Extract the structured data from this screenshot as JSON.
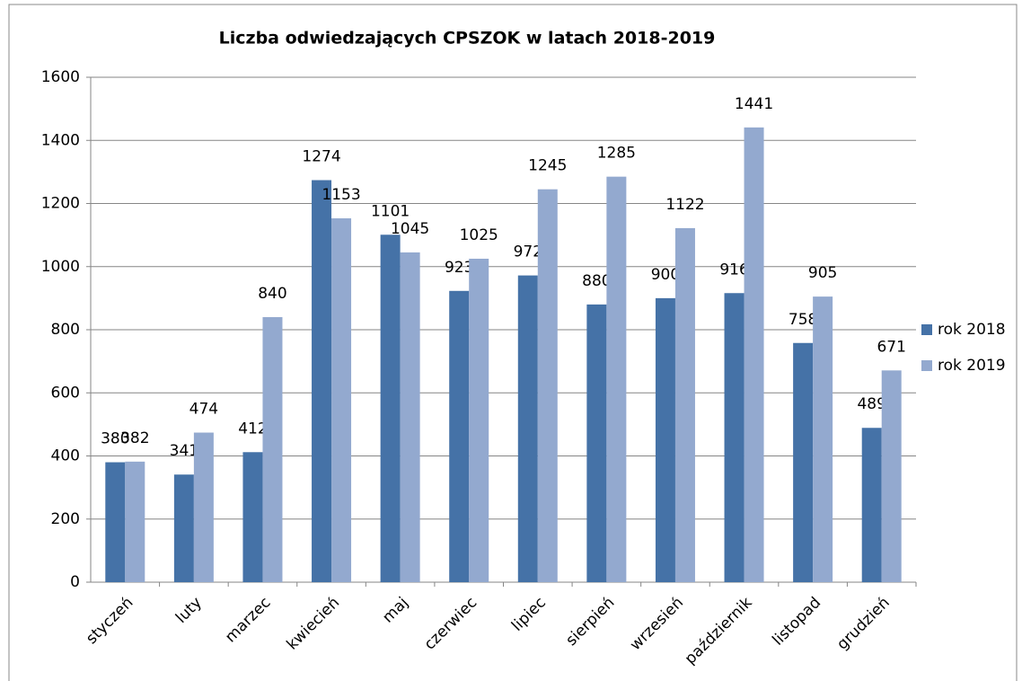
{
  "chart_data": {
    "type": "bar",
    "title": "Liczba odwiedzających CPSZOK w latach 2018-2019",
    "categories": [
      "styczeń",
      "luty",
      "marzec",
      "kwiecień",
      "maj",
      "czerwiec",
      "lipiec",
      "sierpień",
      "wrzesień",
      "październik",
      "listopad",
      "grudzień"
    ],
    "series": [
      {
        "name": "rok 2018",
        "color": "#4572a7",
        "values": [
          380,
          341,
          412,
          1274,
          1101,
          923,
          972,
          880,
          900,
          916,
          758,
          489
        ]
      },
      {
        "name": "rok 2019",
        "color": "#93a9cf",
        "values": [
          382,
          474,
          840,
          1153,
          1045,
          1025,
          1245,
          1285,
          1122,
          1441,
          905,
          671
        ]
      }
    ],
    "ylim": [
      0,
      1600
    ],
    "yticks": [
      0,
      200,
      400,
      600,
      800,
      1000,
      1200,
      1400,
      1600
    ],
    "grid": true,
    "legend": "right"
  }
}
